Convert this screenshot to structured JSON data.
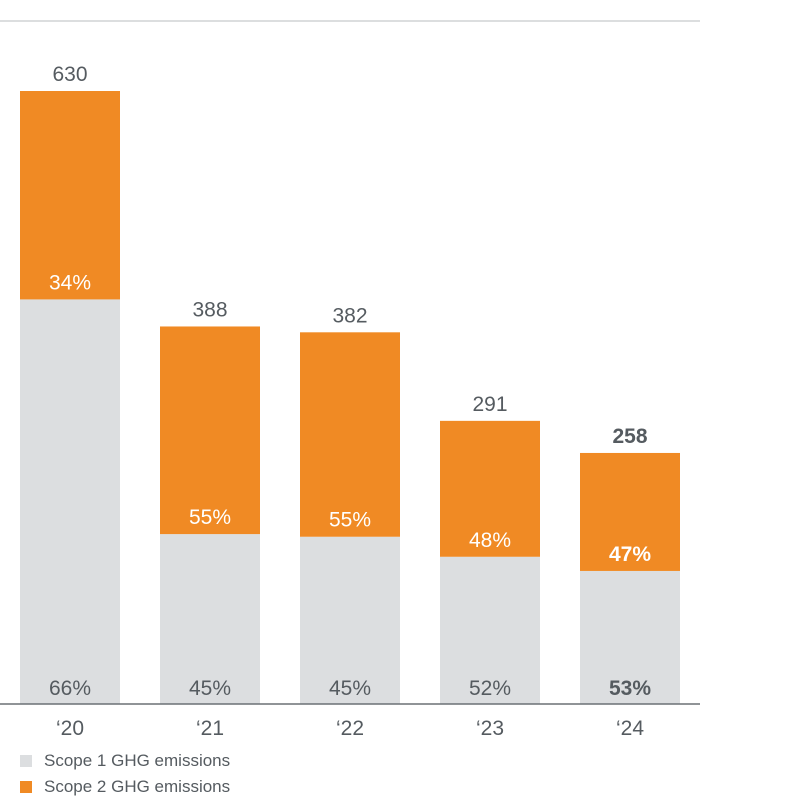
{
  "chart_data": {
    "type": "bar",
    "stacked": true,
    "categories": [
      "‘20",
      "‘21",
      "‘22",
      "‘23",
      "‘24"
    ],
    "totals": [
      "630",
      "388",
      "382",
      "291",
      "258"
    ],
    "total_values": [
      630,
      388,
      382,
      291,
      258
    ],
    "series": [
      {
        "name": "Scope 1 GHG emissions",
        "color": "#dcdee0",
        "percent_labels": [
          "66%",
          "45%",
          "45%",
          "52%",
          "53%"
        ],
        "shares": [
          0.66,
          0.45,
          0.45,
          0.52,
          0.53
        ]
      },
      {
        "name": "Scope 2 GHG emissions",
        "color": "#f08a24",
        "percent_labels": [
          "34%",
          "55%",
          "55%",
          "48%",
          "47%"
        ],
        "shares": [
          0.34,
          0.55,
          0.55,
          0.48,
          0.47
        ]
      }
    ],
    "highlight_category_index": 4,
    "ylim": [
      0,
      630
    ],
    "grid": false,
    "legend_position": "bottom-left"
  }
}
